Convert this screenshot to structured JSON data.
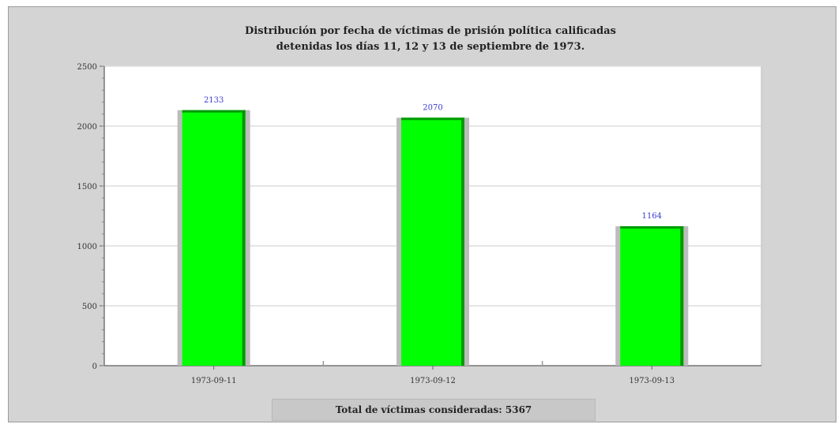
{
  "chart_data": {
    "type": "bar",
    "title": "Distribución por fecha de víctimas de prisión política calificadas detenidas los días 11, 12 y 13 de septiembre de 1973.",
    "title_lines": [
      "Distribución por fecha de víctimas de prisión política calificadas",
      "detenidas los días 11, 12 y 13 de septiembre de 1973."
    ],
    "categories": [
      "1973-09-11",
      "1973-09-12",
      "1973-09-13"
    ],
    "values": [
      2133,
      2070,
      1164
    ],
    "data_labels": [
      "2133",
      "2070",
      "1164"
    ],
    "yticks": [
      "0",
      "500",
      "1000",
      "1500",
      "2000",
      "2500"
    ],
    "ytick_values": [
      0,
      500,
      1000,
      1500,
      2000,
      2500
    ],
    "ylim": [
      0,
      2500
    ],
    "xlabel": "",
    "ylabel": "",
    "grid": true,
    "bar_color": "#00ff00",
    "bar_edge_color": "#009900",
    "label_color": "#3a3ad0",
    "footer": "Total de víctimas consideradas: 5367"
  }
}
